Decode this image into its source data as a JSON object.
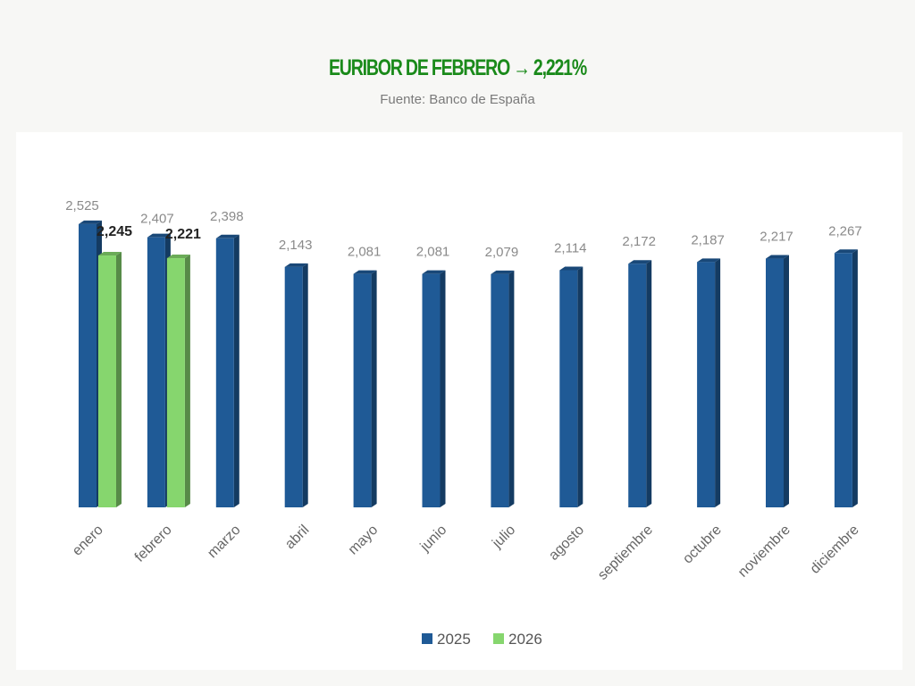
{
  "chart_data": {
    "type": "bar",
    "title": "EURIBOR DE FEBRERO → 2,221%",
    "subtitle": "Fuente: Banco de España",
    "xlabel": "",
    "ylabel": "",
    "ylim": [
      0,
      2.6
    ],
    "grid": false,
    "legend_position": "bottom",
    "categories": [
      "enero",
      "febrero",
      "marzo",
      "abril",
      "mayo",
      "junio",
      "julio",
      "agosto",
      "septiembre",
      "octubre",
      "noviembre",
      "diciembre"
    ],
    "series": [
      {
        "name": "2025",
        "color": "#1f5a96",
        "values": [
          2.525,
          2.407,
          2.398,
          2.143,
          2.081,
          2.081,
          2.079,
          2.114,
          2.172,
          2.187,
          2.217,
          2.267
        ],
        "labels": [
          "2,525",
          "2,407",
          "2,398",
          "2,143",
          "2,081",
          "2,081",
          "2,079",
          "2,114",
          "2,172",
          "2,187",
          "2,217",
          "2,267"
        ]
      },
      {
        "name": "2026",
        "color": "#86d66e",
        "values": [
          2.245,
          2.221,
          null,
          null,
          null,
          null,
          null,
          null,
          null,
          null,
          null,
          null
        ],
        "labels": [
          "2,245",
          "2,221"
        ]
      }
    ]
  }
}
